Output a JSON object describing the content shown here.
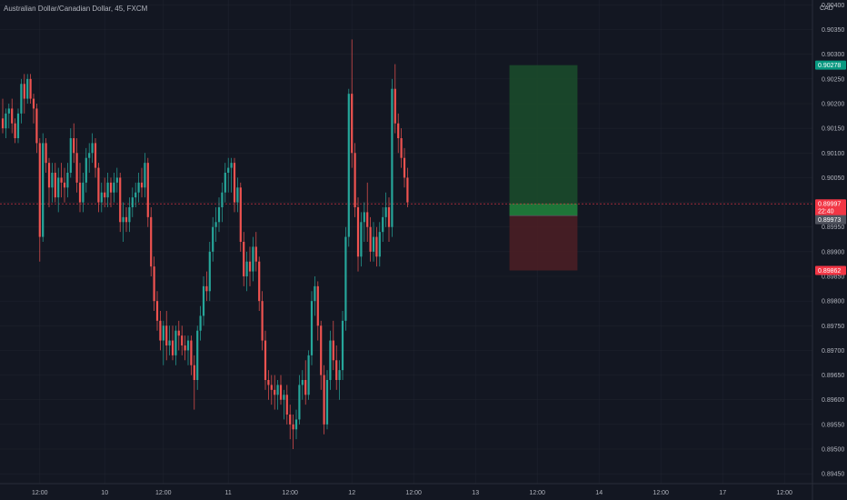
{
  "header": {
    "symbol": "Australian Dollar/Canadian Dollar",
    "interval": "45",
    "exchange": "FXCM",
    "title": "Australian Dollar/Canadian Dollar, 45, FXCM"
  },
  "colors": {
    "background": "#131722",
    "bull": "#26a69a",
    "bear": "#ef5350",
    "grid": "#1e222d",
    "text": "#b2b5be",
    "profit_zone": "#1b4d2b",
    "loss_zone": "#4d1f24",
    "target_tag": "#089981",
    "stop_tag": "#f23645",
    "price_tag": "#f23645",
    "entry_tag": "#50535e"
  },
  "chart_data": {
    "type": "candlestick",
    "currency": "CAD",
    "ylim": [
      0.8943,
      0.9041
    ],
    "y_ticks": [
      "0.90400",
      "0.90350",
      "0.90300",
      "0.90250",
      "0.90200",
      "0.90150",
      "0.90100",
      "0.90050",
      "0.90000",
      "0.89950",
      "0.89900",
      "0.89850",
      "0.89800",
      "0.89750",
      "0.89700",
      "0.89650",
      "0.89600",
      "0.89550",
      "0.89500",
      "0.89450"
    ],
    "x_ticks": [
      {
        "label": "12:00",
        "i": 12
      },
      {
        "label": "10",
        "i": 33
      },
      {
        "label": "12:00",
        "i": 52
      },
      {
        "label": "11",
        "i": 73
      },
      {
        "label": "12:00",
        "i": 93
      },
      {
        "label": "12",
        "i": 113
      },
      {
        "label": "12:00",
        "i": 133
      },
      {
        "label": "13",
        "i": 153
      },
      {
        "label": "12:00",
        "i": 173
      },
      {
        "label": "14",
        "i": 193
      },
      {
        "label": "12:00",
        "i": 213
      },
      {
        "label": "17",
        "i": 233
      },
      {
        "label": "12:00",
        "i": 253
      }
    ],
    "current_price": "0.89997",
    "countdown": "22:40",
    "position": {
      "target": "0.90278",
      "entry": "0.89973",
      "stop": "0.89862",
      "start_i": 164,
      "end_i": 186
    },
    "candles": [
      {
        "o": 0.9017,
        "h": 0.9021,
        "l": 0.9014,
        "c": 0.9015
      },
      {
        "o": 0.9015,
        "h": 0.9019,
        "l": 0.9013,
        "c": 0.9018
      },
      {
        "o": 0.9018,
        "h": 0.902,
        "l": 0.9015,
        "c": 0.9019
      },
      {
        "o": 0.9019,
        "h": 0.9021,
        "l": 0.9014,
        "c": 0.9016
      },
      {
        "o": 0.9016,
        "h": 0.9017,
        "l": 0.9012,
        "c": 0.9013
      },
      {
        "o": 0.9013,
        "h": 0.9019,
        "l": 0.9012,
        "c": 0.9018
      },
      {
        "o": 0.9018,
        "h": 0.9025,
        "l": 0.9016,
        "c": 0.9024
      },
      {
        "o": 0.9024,
        "h": 0.9026,
        "l": 0.9018,
        "c": 0.9021
      },
      {
        "o": 0.9021,
        "h": 0.9026,
        "l": 0.902,
        "c": 0.9025
      },
      {
        "o": 0.9025,
        "h": 0.9026,
        "l": 0.902,
        "c": 0.9021
      },
      {
        "o": 0.9021,
        "h": 0.9022,
        "l": 0.9016,
        "c": 0.9019
      },
      {
        "o": 0.9019,
        "h": 0.902,
        "l": 0.901,
        "c": 0.9012
      },
      {
        "o": 0.9012,
        "h": 0.9013,
        "l": 0.8988,
        "c": 0.8993
      },
      {
        "o": 0.8993,
        "h": 0.9014,
        "l": 0.8992,
        "c": 0.9012
      },
      {
        "o": 0.9012,
        "h": 0.9013,
        "l": 0.9006,
        "c": 0.9008
      },
      {
        "o": 0.9008,
        "h": 0.9009,
        "l": 0.8999,
        "c": 0.9003
      },
      {
        "o": 0.9003,
        "h": 0.9008,
        "l": 0.9,
        "c": 0.9006
      },
      {
        "o": 0.9006,
        "h": 0.9008,
        "l": 0.9,
        "c": 0.9001
      },
      {
        "o": 0.9001,
        "h": 0.9007,
        "l": 0.8998,
        "c": 0.9005
      },
      {
        "o": 0.9005,
        "h": 0.9008,
        "l": 0.9001,
        "c": 0.9004
      },
      {
        "o": 0.9004,
        "h": 0.9007,
        "l": 0.9,
        "c": 0.9003
      },
      {
        "o": 0.9003,
        "h": 0.9008,
        "l": 0.9001,
        "c": 0.9006
      },
      {
        "o": 0.9006,
        "h": 0.9015,
        "l": 0.9005,
        "c": 0.9013
      },
      {
        "o": 0.9013,
        "h": 0.9016,
        "l": 0.9008,
        "c": 0.901
      },
      {
        "o": 0.901,
        "h": 0.9013,
        "l": 0.9002,
        "c": 0.9004
      },
      {
        "o": 0.9004,
        "h": 0.9008,
        "l": 0.8998,
        "c": 0.9
      },
      {
        "o": 0.9,
        "h": 0.9006,
        "l": 0.8998,
        "c": 0.9004
      },
      {
        "o": 0.9004,
        "h": 0.9011,
        "l": 0.9002,
        "c": 0.9009
      },
      {
        "o": 0.9009,
        "h": 0.9012,
        "l": 0.9006,
        "c": 0.901
      },
      {
        "o": 0.901,
        "h": 0.9014,
        "l": 0.9008,
        "c": 0.9012
      },
      {
        "o": 0.9012,
        "h": 0.9013,
        "l": 0.9005,
        "c": 0.9007
      },
      {
        "o": 0.9007,
        "h": 0.9008,
        "l": 0.8998,
        "c": 0.9
      },
      {
        "o": 0.9,
        "h": 0.9004,
        "l": 0.8998,
        "c": 0.9002
      },
      {
        "o": 0.9002,
        "h": 0.9005,
        "l": 0.8999,
        "c": 0.9001
      },
      {
        "o": 0.9001,
        "h": 0.9006,
        "l": 0.8999,
        "c": 0.9004
      },
      {
        "o": 0.9004,
        "h": 0.9005,
        "l": 0.8999,
        "c": 0.9002
      },
      {
        "o": 0.9002,
        "h": 0.9006,
        "l": 0.9,
        "c": 0.9004
      },
      {
        "o": 0.9004,
        "h": 0.9007,
        "l": 0.9002,
        "c": 0.9005
      },
      {
        "o": 0.9005,
        "h": 0.9006,
        "l": 0.8994,
        "c": 0.8996
      },
      {
        "o": 0.8996,
        "h": 0.9,
        "l": 0.8992,
        "c": 0.8997
      },
      {
        "o": 0.8997,
        "h": 0.8999,
        "l": 0.8994,
        "c": 0.8996
      },
      {
        "o": 0.8996,
        "h": 0.9001,
        "l": 0.8994,
        "c": 0.8999
      },
      {
        "o": 0.8999,
        "h": 0.9003,
        "l": 0.8997,
        "c": 0.9001
      },
      {
        "o": 0.9001,
        "h": 0.9004,
        "l": 0.8999,
        "c": 0.9002
      },
      {
        "o": 0.9002,
        "h": 0.9006,
        "l": 0.9,
        "c": 0.9004
      },
      {
        "o": 0.9004,
        "h": 0.9007,
        "l": 0.9001,
        "c": 0.9003
      },
      {
        "o": 0.9003,
        "h": 0.901,
        "l": 0.9001,
        "c": 0.9008
      },
      {
        "o": 0.9008,
        "h": 0.9009,
        "l": 0.8995,
        "c": 0.8997
      },
      {
        "o": 0.8997,
        "h": 0.8999,
        "l": 0.8985,
        "c": 0.8987
      },
      {
        "o": 0.8987,
        "h": 0.8989,
        "l": 0.8978,
        "c": 0.898
      },
      {
        "o": 0.898,
        "h": 0.8982,
        "l": 0.8974,
        "c": 0.8976
      },
      {
        "o": 0.8976,
        "h": 0.8978,
        "l": 0.897,
        "c": 0.8972
      },
      {
        "o": 0.8972,
        "h": 0.8976,
        "l": 0.8967,
        "c": 0.8975
      },
      {
        "o": 0.8975,
        "h": 0.8978,
        "l": 0.8968,
        "c": 0.8971
      },
      {
        "o": 0.8971,
        "h": 0.8975,
        "l": 0.8969,
        "c": 0.8972
      },
      {
        "o": 0.8972,
        "h": 0.8975,
        "l": 0.8968,
        "c": 0.8969
      },
      {
        "o": 0.8969,
        "h": 0.8975,
        "l": 0.8967,
        "c": 0.8974
      },
      {
        "o": 0.8974,
        "h": 0.8976,
        "l": 0.897,
        "c": 0.8973
      },
      {
        "o": 0.8973,
        "h": 0.8975,
        "l": 0.8969,
        "c": 0.8971
      },
      {
        "o": 0.8971,
        "h": 0.8973,
        "l": 0.8968,
        "c": 0.897
      },
      {
        "o": 0.897,
        "h": 0.8973,
        "l": 0.8967,
        "c": 0.8972
      },
      {
        "o": 0.8972,
        "h": 0.8973,
        "l": 0.8965,
        "c": 0.8967
      },
      {
        "o": 0.8967,
        "h": 0.8969,
        "l": 0.8958,
        "c": 0.8964
      },
      {
        "o": 0.8964,
        "h": 0.8975,
        "l": 0.8962,
        "c": 0.8974
      },
      {
        "o": 0.8974,
        "h": 0.8979,
        "l": 0.8972,
        "c": 0.8977
      },
      {
        "o": 0.8977,
        "h": 0.8985,
        "l": 0.8975,
        "c": 0.8983
      },
      {
        "o": 0.8983,
        "h": 0.8986,
        "l": 0.898,
        "c": 0.8982
      },
      {
        "o": 0.8982,
        "h": 0.8992,
        "l": 0.898,
        "c": 0.899
      },
      {
        "o": 0.899,
        "h": 0.8997,
        "l": 0.8988,
        "c": 0.8995
      },
      {
        "o": 0.8995,
        "h": 0.8999,
        "l": 0.8992,
        "c": 0.8996
      },
      {
        "o": 0.8996,
        "h": 0.9001,
        "l": 0.8994,
        "c": 0.8999
      },
      {
        "o": 0.8999,
        "h": 0.9004,
        "l": 0.8996,
        "c": 0.9002
      },
      {
        "o": 0.9002,
        "h": 0.9008,
        "l": 0.9,
        "c": 0.9006
      },
      {
        "o": 0.9006,
        "h": 0.9009,
        "l": 0.9002,
        "c": 0.9007
      },
      {
        "o": 0.9007,
        "h": 0.9009,
        "l": 0.9002,
        "c": 0.9008
      },
      {
        "o": 0.9008,
        "h": 0.9009,
        "l": 0.8998,
        "c": 0.9
      },
      {
        "o": 0.9,
        "h": 0.9005,
        "l": 0.8998,
        "c": 0.9003
      },
      {
        "o": 0.9003,
        "h": 0.9004,
        "l": 0.899,
        "c": 0.8992
      },
      {
        "o": 0.8992,
        "h": 0.8994,
        "l": 0.8983,
        "c": 0.8985
      },
      {
        "o": 0.8985,
        "h": 0.899,
        "l": 0.8982,
        "c": 0.8988
      },
      {
        "o": 0.8988,
        "h": 0.8991,
        "l": 0.8983,
        "c": 0.8986
      },
      {
        "o": 0.8986,
        "h": 0.8993,
        "l": 0.8984,
        "c": 0.8991
      },
      {
        "o": 0.8991,
        "h": 0.8994,
        "l": 0.8986,
        "c": 0.8988
      },
      {
        "o": 0.8988,
        "h": 0.8989,
        "l": 0.8978,
        "c": 0.898
      },
      {
        "o": 0.898,
        "h": 0.8982,
        "l": 0.897,
        "c": 0.8972
      },
      {
        "o": 0.8972,
        "h": 0.8974,
        "l": 0.8962,
        "c": 0.8964
      },
      {
        "o": 0.8964,
        "h": 0.8966,
        "l": 0.896,
        "c": 0.8963
      },
      {
        "o": 0.8963,
        "h": 0.8965,
        "l": 0.8959,
        "c": 0.8962
      },
      {
        "o": 0.8962,
        "h": 0.8965,
        "l": 0.8958,
        "c": 0.8961
      },
      {
        "o": 0.8961,
        "h": 0.8964,
        "l": 0.8958,
        "c": 0.8963
      },
      {
        "o": 0.8963,
        "h": 0.8965,
        "l": 0.8959,
        "c": 0.896
      },
      {
        "o": 0.896,
        "h": 0.8962,
        "l": 0.8956,
        "c": 0.8961
      },
      {
        "o": 0.8961,
        "h": 0.8963,
        "l": 0.8955,
        "c": 0.8957
      },
      {
        "o": 0.8957,
        "h": 0.8959,
        "l": 0.8952,
        "c": 0.8955
      },
      {
        "o": 0.8955,
        "h": 0.8957,
        "l": 0.895,
        "c": 0.8954
      },
      {
        "o": 0.8954,
        "h": 0.8958,
        "l": 0.8952,
        "c": 0.8956
      },
      {
        "o": 0.8956,
        "h": 0.8965,
        "l": 0.8955,
        "c": 0.8963
      },
      {
        "o": 0.8963,
        "h": 0.8966,
        "l": 0.896,
        "c": 0.8964
      },
      {
        "o": 0.8964,
        "h": 0.8968,
        "l": 0.8959,
        "c": 0.8961
      },
      {
        "o": 0.8961,
        "h": 0.897,
        "l": 0.896,
        "c": 0.8969
      },
      {
        "o": 0.8969,
        "h": 0.8982,
        "l": 0.8967,
        "c": 0.898
      },
      {
        "o": 0.898,
        "h": 0.8985,
        "l": 0.8977,
        "c": 0.8983
      },
      {
        "o": 0.8983,
        "h": 0.8984,
        "l": 0.8972,
        "c": 0.8975
      },
      {
        "o": 0.8975,
        "h": 0.8976,
        "l": 0.8962,
        "c": 0.8965
      },
      {
        "o": 0.8965,
        "h": 0.8967,
        "l": 0.8953,
        "c": 0.8955
      },
      {
        "o": 0.8955,
        "h": 0.8966,
        "l": 0.8954,
        "c": 0.8964
      },
      {
        "o": 0.8964,
        "h": 0.8974,
        "l": 0.8962,
        "c": 0.8972
      },
      {
        "o": 0.8972,
        "h": 0.8976,
        "l": 0.8966,
        "c": 0.8968
      },
      {
        "o": 0.8968,
        "h": 0.8971,
        "l": 0.8962,
        "c": 0.8964
      },
      {
        "o": 0.8964,
        "h": 0.8968,
        "l": 0.896,
        "c": 0.8966
      },
      {
        "o": 0.8966,
        "h": 0.8978,
        "l": 0.8964,
        "c": 0.8976
      },
      {
        "o": 0.8976,
        "h": 0.8995,
        "l": 0.8974,
        "c": 0.8993
      },
      {
        "o": 0.8993,
        "h": 0.9023,
        "l": 0.8991,
        "c": 0.9022
      },
      {
        "o": 0.9022,
        "h": 0.9033,
        "l": 0.9007,
        "c": 0.901
      },
      {
        "o": 0.901,
        "h": 0.9012,
        "l": 0.8997,
        "c": 0.8999
      },
      {
        "o": 0.8999,
        "h": 0.9001,
        "l": 0.8986,
        "c": 0.8989
      },
      {
        "o": 0.8989,
        "h": 0.8998,
        "l": 0.8987,
        "c": 0.8996
      },
      {
        "o": 0.8996,
        "h": 0.9,
        "l": 0.8992,
        "c": 0.8998
      },
      {
        "o": 0.8998,
        "h": 0.9004,
        "l": 0.8992,
        "c": 0.8995
      },
      {
        "o": 0.8995,
        "h": 0.8997,
        "l": 0.8988,
        "c": 0.899
      },
      {
        "o": 0.899,
        "h": 0.8996,
        "l": 0.8988,
        "c": 0.8993
      },
      {
        "o": 0.8993,
        "h": 0.8995,
        "l": 0.8987,
        "c": 0.8989
      },
      {
        "o": 0.8989,
        "h": 0.8996,
        "l": 0.8987,
        "c": 0.8994
      },
      {
        "o": 0.8994,
        "h": 0.8999,
        "l": 0.8992,
        "c": 0.8997
      },
      {
        "o": 0.8997,
        "h": 0.9002,
        "l": 0.8995,
        "c": 0.8999
      },
      {
        "o": 0.8999,
        "h": 0.9001,
        "l": 0.8992,
        "c": 0.8995
      },
      {
        "o": 0.8995,
        "h": 0.9025,
        "l": 0.8993,
        "c": 0.9023
      },
      {
        "o": 0.9023,
        "h": 0.9028,
        "l": 0.9014,
        "c": 0.9016
      },
      {
        "o": 0.9016,
        "h": 0.9018,
        "l": 0.901,
        "c": 0.9013
      },
      {
        "o": 0.9013,
        "h": 0.9015,
        "l": 0.9007,
        "c": 0.9009
      },
      {
        "o": 0.9009,
        "h": 0.9011,
        "l": 0.9003,
        "c": 0.9005
      },
      {
        "o": 0.9005,
        "h": 0.9007,
        "l": 0.8999,
        "c": 0.9
      }
    ]
  }
}
